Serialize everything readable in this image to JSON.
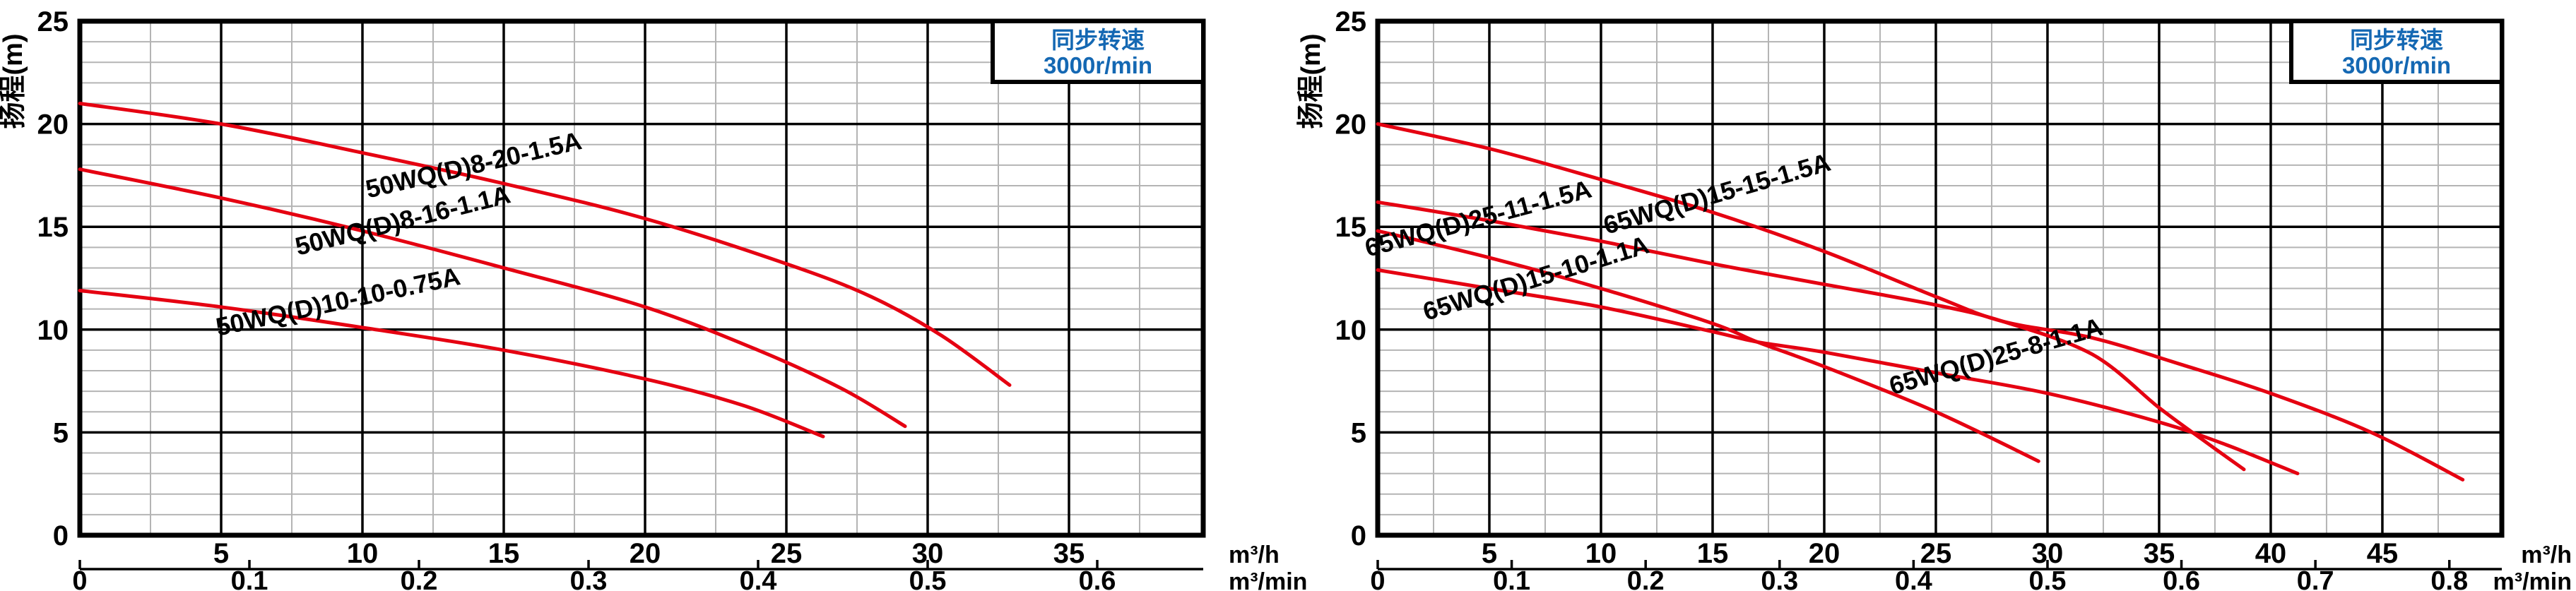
{
  "colors": {
    "curve_red": "#e50011",
    "legend_blue": "#1468b3",
    "grid_minor": "#b4b4b4",
    "grid_major": "#000000",
    "text_black": "#000000",
    "background": "#ffffff"
  },
  "chart_data": [
    {
      "type": "line",
      "name": "50WQ pump curves",
      "legend": {
        "line1": "同步转速",
        "line2": "3000r/min",
        "position": "top-right-inside"
      },
      "grid": "on",
      "y_axis": {
        "title": "扬程(m)",
        "min": 0,
        "max": 25,
        "major_step": 5,
        "minor_step": 1,
        "tick_labels": [
          "0",
          "5",
          "10",
          "15",
          "20",
          "25"
        ]
      },
      "x_axis": {
        "unit": "m³/h",
        "min": 0,
        "max": 39.75,
        "major_step": 5,
        "minor_step": 2.5,
        "tick_values": [
          5,
          10,
          15,
          20,
          25,
          30,
          35
        ]
      },
      "x_axis_secondary": {
        "unit": "m³/min",
        "tick_values": [
          0,
          0.1,
          0.2,
          0.3,
          0.4,
          0.5,
          0.6
        ],
        "flow_scale_to_primary": 60
      },
      "series": [
        {
          "name": "50WQ(D)8-20-1.5A",
          "points": [
            [
              0,
              21
            ],
            [
              5,
              20
            ],
            [
              10,
              18.6
            ],
            [
              15,
              17.1
            ],
            [
              20,
              15.4
            ],
            [
              25,
              13.2
            ],
            [
              28,
              11.6
            ],
            [
              30.5,
              9.7
            ],
            [
              32.9,
              7.3
            ]
          ],
          "label_pos": {
            "x": 14.0,
            "y": 17.6,
            "angle": -13
          }
        },
        {
          "name": "50WQ(D)8-16-1.1A",
          "points": [
            [
              0,
              17.8
            ],
            [
              5,
              16.4
            ],
            [
              10,
              14.8
            ],
            [
              15,
              13.0
            ],
            [
              20,
              11.1
            ],
            [
              24,
              9.0
            ],
            [
              27,
              7.1
            ],
            [
              29.2,
              5.3
            ]
          ],
          "label_pos": {
            "x": 11.5,
            "y": 14.9,
            "angle": -14
          }
        },
        {
          "name": "50WQ(D)10-10-0.75A",
          "points": [
            [
              0,
              11.9
            ],
            [
              5,
              11.1
            ],
            [
              10,
              10.1
            ],
            [
              15,
              9.0
            ],
            [
              20,
              7.6
            ],
            [
              23.5,
              6.3
            ],
            [
              26.3,
              4.8
            ]
          ],
          "label_pos": {
            "x": 9.2,
            "y": 10.95,
            "angle": -12
          }
        }
      ]
    },
    {
      "type": "line",
      "name": "65WQ pump curves",
      "legend": {
        "line1": "同步转速",
        "line2": "3000r/min",
        "position": "top-right-inside"
      },
      "grid": "on",
      "y_axis": {
        "title": "扬程(m)",
        "min": 0,
        "max": 25,
        "major_step": 5,
        "minor_step": 1,
        "tick_labels": [
          "0",
          "5",
          "10",
          "15",
          "20",
          "25"
        ]
      },
      "x_axis": {
        "unit": "m³/h",
        "min": 0,
        "max": 50.35,
        "major_step": 5,
        "minor_step": 2.5,
        "tick_values": [
          5,
          10,
          15,
          20,
          25,
          30,
          35,
          40,
          45
        ]
      },
      "x_axis_secondary": {
        "unit": "m³/min",
        "tick_values": [
          0,
          0.1,
          0.2,
          0.3,
          0.4,
          0.5,
          0.6,
          0.7,
          0.8
        ],
        "flow_scale_to_primary": 60
      },
      "series": [
        {
          "name": "65WQ(D)15-15-1.5A",
          "points": [
            [
              0,
              20
            ],
            [
              5,
              18.8
            ],
            [
              10,
              17.3
            ],
            [
              15,
              15.7
            ],
            [
              20,
              13.8
            ],
            [
              25,
              11.6
            ],
            [
              28,
              10.4
            ],
            [
              32,
              9.6
            ],
            [
              36,
              8.3
            ],
            [
              40,
              6.9
            ],
            [
              44.5,
              5.0
            ],
            [
              48.6,
              2.7
            ]
          ],
          "label_pos": {
            "x": 15.3,
            "y": 16.2,
            "angle": -16
          }
        },
        {
          "name": "65WQ(D)25-11-1.5A",
          "points": [
            [
              0,
              16.2
            ],
            [
              5,
              15.3
            ],
            [
              10,
              14.3
            ],
            [
              15,
              13.2
            ],
            [
              20,
              12.2
            ],
            [
              25,
              11.2
            ],
            [
              28,
              10.4
            ],
            [
              32,
              8.8
            ],
            [
              35,
              6.2
            ],
            [
              37,
              4.6
            ],
            [
              38.8,
              3.2
            ]
          ],
          "label_pos": {
            "x": 4.6,
            "y": 15.0,
            "angle": -15
          }
        },
        {
          "name": "65WQ(D)15-10-1.1A",
          "points": [
            [
              0,
              14.8
            ],
            [
              5,
              13.5
            ],
            [
              10,
              12.0
            ],
            [
              15,
              10.3
            ],
            [
              17,
              9.4
            ],
            [
              20,
              8.2
            ],
            [
              25,
              6.0
            ],
            [
              29.6,
              3.6
            ]
          ],
          "label_pos": {
            "x": 7.2,
            "y": 12.1,
            "angle": -17
          }
        },
        {
          "name": "65WQ(D)25-8-1.1A",
          "points": [
            [
              0,
              12.9
            ],
            [
              5,
              12.0
            ],
            [
              10,
              11.1
            ],
            [
              15,
              9.9
            ],
            [
              17,
              9.4
            ],
            [
              20,
              8.9
            ],
            [
              25,
              7.9
            ],
            [
              30,
              6.9
            ],
            [
              35,
              5.5
            ],
            [
              38,
              4.4
            ],
            [
              41.2,
              3.0
            ]
          ],
          "label_pos": {
            "x": 27.8,
            "y": 8.3,
            "angle": -16
          }
        }
      ]
    }
  ]
}
